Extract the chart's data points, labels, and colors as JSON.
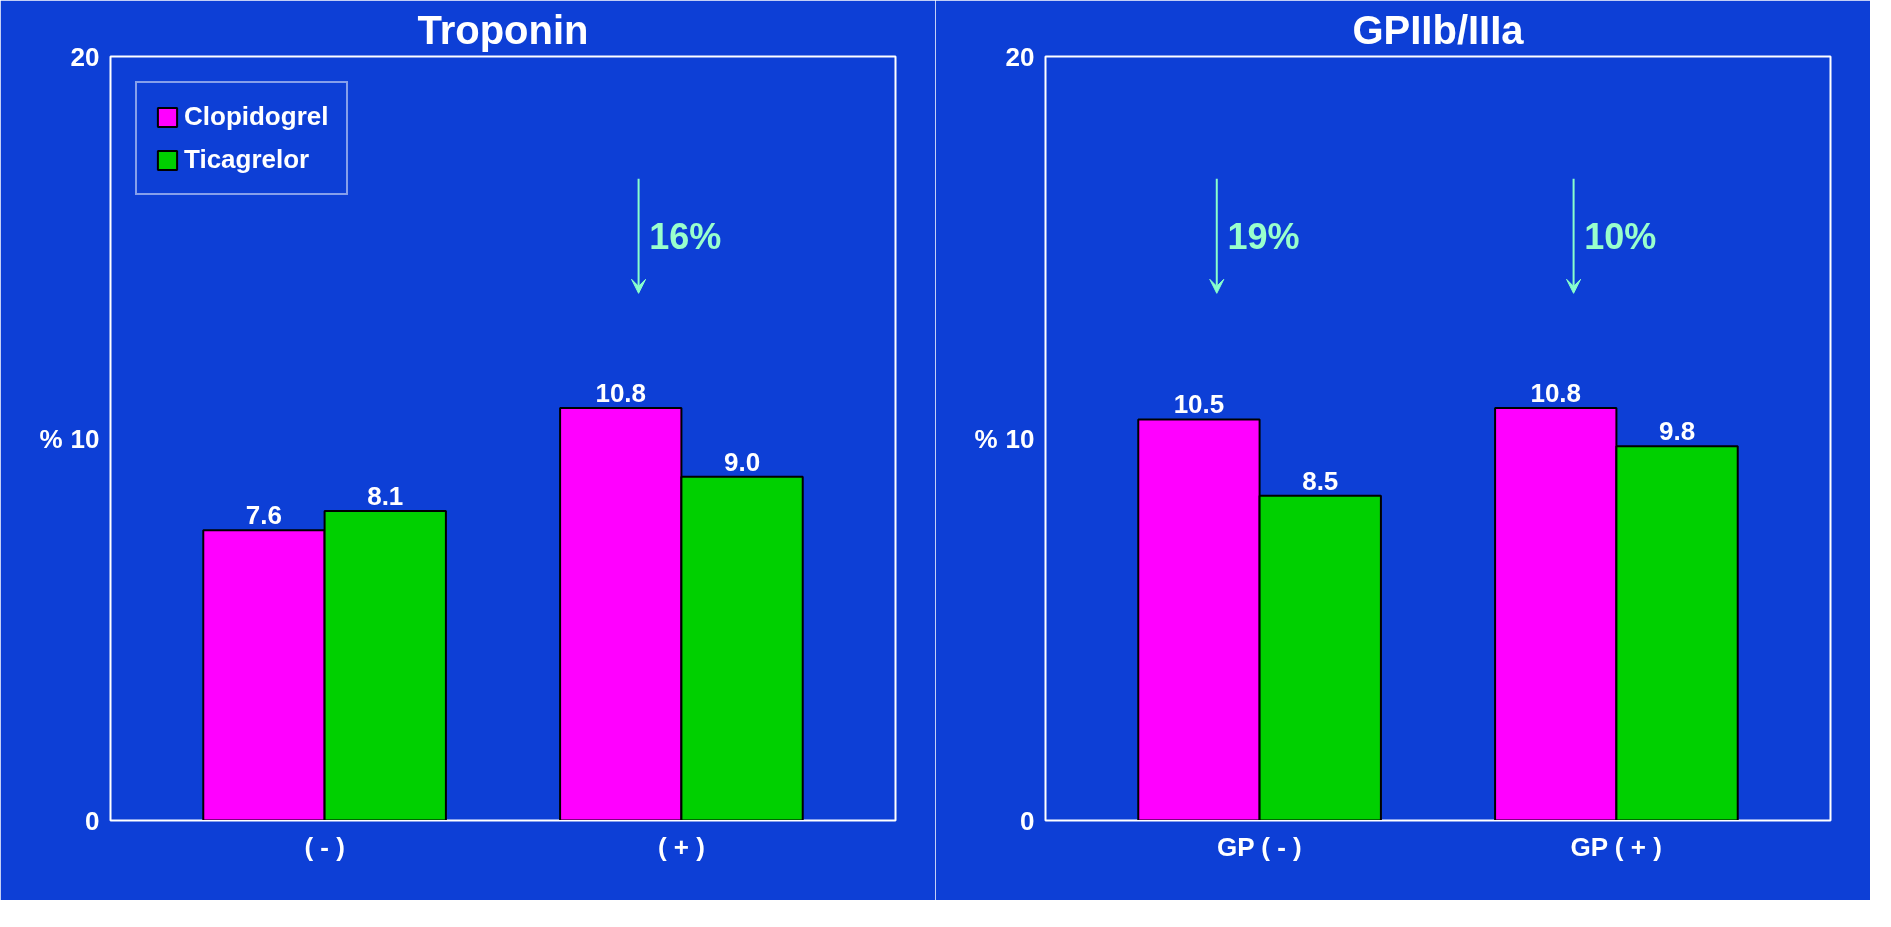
{
  "chart_data": [
    {
      "type": "bar",
      "title": "Troponin",
      "ylabel": "%",
      "categories": [
        "( - )",
        "( + )"
      ],
      "series": [
        {
          "name": "Clopidogrel",
          "color": "#ff00ff",
          "values": [
            7.6,
            10.8
          ]
        },
        {
          "name": "Ticagrelor",
          "color": "#00d000",
          "values": [
            8.1,
            9.0
          ]
        }
      ],
      "ylim": [
        0,
        20
      ],
      "yticks": [
        0,
        10,
        20
      ],
      "grid": false,
      "legend": "top left",
      "value_labels": [
        [
          "7.6",
          "10.8"
        ],
        [
          "8.1",
          "9.0"
        ]
      ],
      "annotations": [
        "16%"
      ]
    },
    {
      "type": "bar",
      "title": "GPIIb/IIIa",
      "ylabel": "%",
      "categories": [
        "GP ( - )",
        "GP ( + )"
      ],
      "series": [
        {
          "color": "#ff00ff",
          "values": [
            10.5,
            10.8
          ]
        },
        {
          "color": "#00d000",
          "values": [
            8.5,
            9.8
          ]
        }
      ],
      "ylim": [
        0,
        20
      ],
      "yticks": [
        0,
        10,
        20
      ],
      "grid": false,
      "legend": false,
      "value_labels": [
        [
          "10.5",
          "10.8"
        ],
        [
          "8.5",
          "9.8"
        ]
      ],
      "annotations": [
        "19%",
        "10%"
      ]
    }
  ]
}
